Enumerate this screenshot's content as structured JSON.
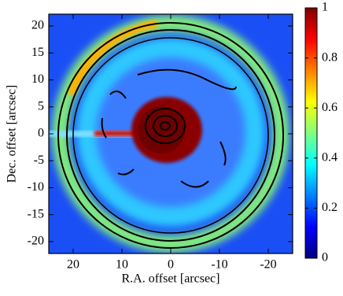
{
  "chart_data": {
    "type": "image",
    "xlabel": "R.A. offset [arcsec]",
    "ylabel": "Dec. offset [arcsec]",
    "xlim": [
      25,
      -25
    ],
    "xticks": [
      20,
      10,
      0,
      -10,
      -20
    ],
    "ylim": [
      -22.2,
      22.2
    ],
    "yticks": [
      -20,
      -15,
      -10,
      -5,
      0,
      5,
      10,
      15,
      20
    ],
    "colormap": [
      "#00007f",
      "#0000ff",
      "#0080ff",
      "#00ffff",
      "#80ff80",
      "#ffff00",
      "#ff8000",
      "#ff0000",
      "#7f0000"
    ],
    "colorbar": {
      "lim": [
        0,
        1
      ],
      "ticks": [
        0,
        0.2,
        0.4,
        0.6,
        0.8,
        1
      ]
    }
  }
}
